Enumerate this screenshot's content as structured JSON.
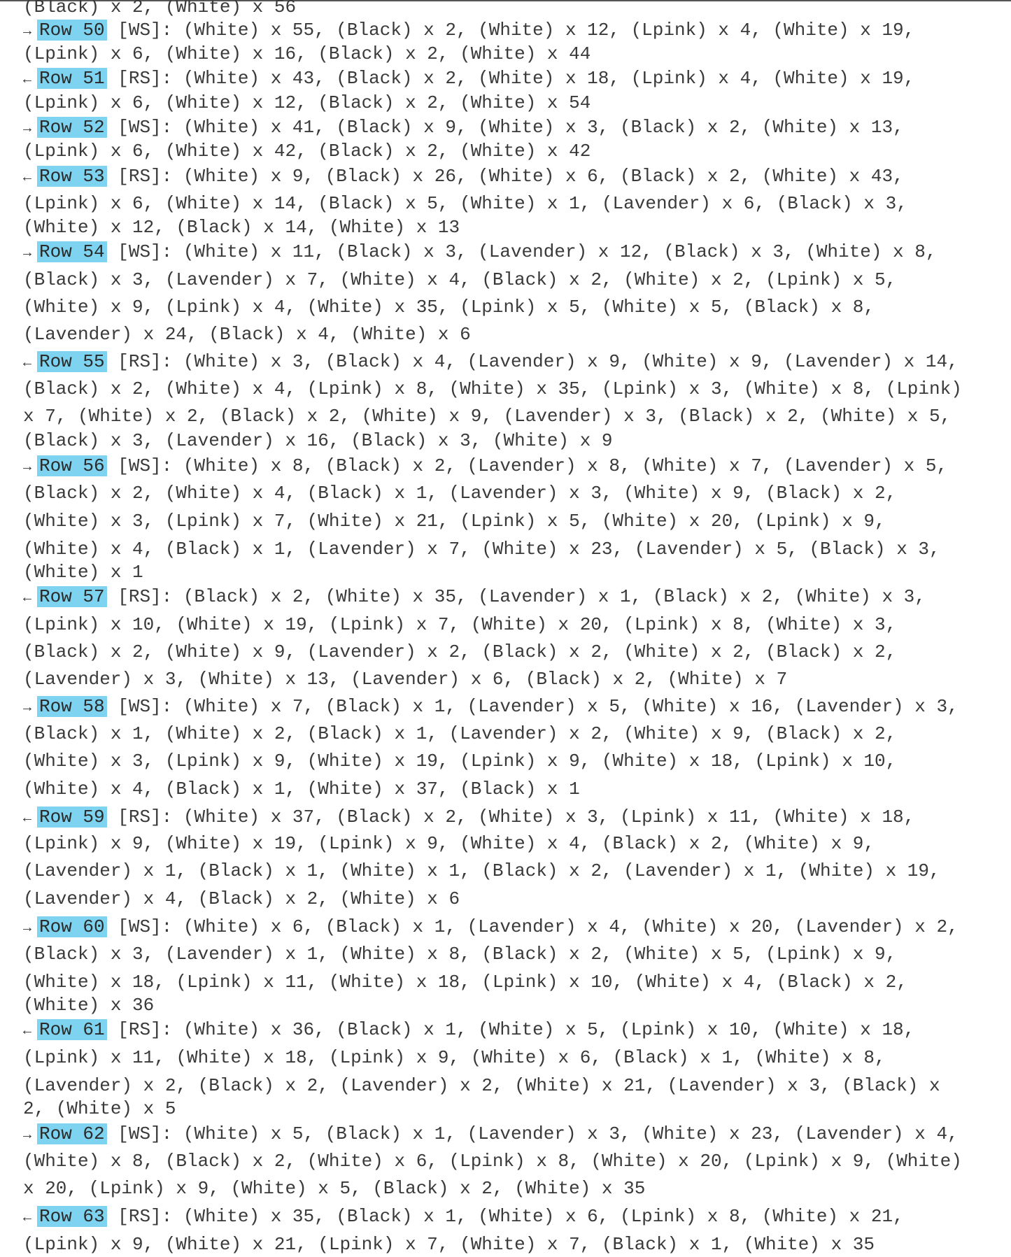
{
  "leading_fragment": "(Black) x 2, (White) x 56",
  "highlight_color": "#7ed3f0",
  "rows": [
    {
      "dir": "→",
      "label": "Row 50",
      "side": "[WS]:",
      "lines": [
        "(White) x 55, (Black) x 2, (White) x 12, (Lpink) x 4, (White) x 19,",
        "(Lpink) x 6, (White) x 16, (Black) x 2, (White) x 44"
      ]
    },
    {
      "dir": "←",
      "label": "Row 51",
      "side": "[RS]:",
      "lines": [
        "(White) x 43, (Black) x 2, (White) x 18, (Lpink) x 4, (White) x 19,",
        "(Lpink) x 6, (White) x 12, (Black) x 2, (White) x 54"
      ]
    },
    {
      "dir": "→",
      "label": "Row 52",
      "side": "[WS]:",
      "lines": [
        "(White) x 41, (Black) x 9, (White) x 3, (Black) x 2, (White) x 13,",
        "(Lpink) x 6, (White) x 42, (Black) x 2, (White) x 42"
      ]
    },
    {
      "dir": "←",
      "label": "Row 53",
      "side": "[RS]:",
      "lines": [
        "(White) x 9, (Black) x 26, (White) x 6, (Black) x 2, (White) x 43,",
        "(Lpink) x 6, (White) x 14, (Black) x 5, (White) x 1, (Lavender) x 6, (Black) x 3,",
        "(White) x 12, (Black) x 14, (White) x 13"
      ]
    },
    {
      "dir": "→",
      "label": "Row 54",
      "side": "[WS]:",
      "lines": [
        "(White) x 11, (Black) x 3, (Lavender) x 12, (Black) x 3, (White) x 8,",
        "(Black) x 3, (Lavender) x 7, (White) x 4, (Black) x 2, (White) x 2, (Lpink) x 5,",
        "(White) x 9, (Lpink) x 4, (White) x 35, (Lpink) x 5, (White) x 5, (Black) x 8,",
        "(Lavender) x 24, (Black) x 4, (White) x 6"
      ]
    },
    {
      "dir": "←",
      "label": "Row 55",
      "side": "[RS]:",
      "lines": [
        "(White) x 3, (Black) x 4, (Lavender) x 9, (White) x 9, (Lavender) x 14,",
        "(Black) x 2, (White) x 4, (Lpink) x 8, (White) x 35, (Lpink) x 3, (White) x 8, (Lpink)",
        "x 7, (White) x 2, (Black) x 2, (White) x 9, (Lavender) x 3, (Black) x 2, (White) x 5,",
        "(Black) x 3, (Lavender) x 16, (Black) x 3, (White) x 9"
      ]
    },
    {
      "dir": "→",
      "label": "Row 56",
      "side": "[WS]:",
      "lines": [
        "(White) x 8, (Black) x 2, (Lavender) x 8, (White) x 7, (Lavender) x 5,",
        "(Black) x 2, (White) x 4, (Black) x 1, (Lavender) x 3, (White) x 9, (Black) x 2,",
        "(White) x 3, (Lpink) x 7, (White) x 21, (Lpink) x 5, (White) x 20, (Lpink) x 9,",
        "(White) x 4, (Black) x 1, (Lavender) x 7, (White) x 23, (Lavender) x 5, (Black) x 3,",
        "(White) x 1"
      ]
    },
    {
      "dir": "←",
      "label": "Row 57",
      "side": "[RS]:",
      "lines": [
        "(Black) x 2, (White) x 35, (Lavender) x 1, (Black) x 2, (White) x 3,",
        "(Lpink) x 10, (White) x 19, (Lpink) x 7, (White) x 20, (Lpink) x 8, (White) x 3,",
        "(Black) x 2, (White) x 9, (Lavender) x 2, (Black) x 2, (White) x 2, (Black) x 2,",
        "(Lavender) x 3, (White) x 13, (Lavender) x 6, (Black) x 2, (White) x 7"
      ]
    },
    {
      "dir": "→",
      "label": "Row 58",
      "side": "[WS]:",
      "lines": [
        "(White) x 7, (Black) x 1, (Lavender) x 5, (White) x 16, (Lavender) x 3,",
        "(Black) x 1, (White) x 2, (Black) x 1, (Lavender) x 2, (White) x 9, (Black) x 2,",
        "(White) x 3, (Lpink) x 9, (White) x 19, (Lpink) x 9, (White) x 18, (Lpink) x 10,",
        "(White) x 4, (Black) x 1, (White) x 37, (Black) x 1"
      ]
    },
    {
      "dir": "←",
      "label": "Row 59",
      "side": "[RS]:",
      "lines": [
        "(White) x 37, (Black) x 2, (White) x 3, (Lpink) x 11, (White) x 18,",
        "(Lpink) x 9, (White) x 19, (Lpink) x 9, (White) x 4, (Black) x 2, (White) x 9,",
        "(Lavender) x 1, (Black) x 1, (White) x 1, (Black) x 2, (Lavender) x 1, (White) x 19,",
        "(Lavender) x 4, (Black) x 2, (White) x 6"
      ]
    },
    {
      "dir": "→",
      "label": "Row 60",
      "side": "[WS]:",
      "lines": [
        "(White) x 6, (Black) x 1, (Lavender) x 4, (White) x 20, (Lavender) x 2,",
        "(Black) x 3, (Lavender) x 1, (White) x 8, (Black) x 2, (White) x 5, (Lpink) x 9,",
        "(White) x 18, (Lpink) x 11, (White) x 18, (Lpink) x 10, (White) x 4, (Black) x 2,",
        "(White) x 36"
      ]
    },
    {
      "dir": "←",
      "label": "Row 61",
      "side": "[RS]:",
      "lines": [
        "(White) x 36, (Black) x 1, (White) x 5, (Lpink) x 10, (White) x 18,",
        "(Lpink) x 11, (White) x 18, (Lpink) x 9, (White) x 6, (Black) x 1, (White) x 8,",
        "(Lavender) x 2, (Black) x 2, (Lavender) x 2, (White) x 21, (Lavender) x 3, (Black) x",
        "2, (White) x 5"
      ]
    },
    {
      "dir": "→",
      "label": "Row 62",
      "side": "[WS]:",
      "lines": [
        "(White) x 5, (Black) x 1, (Lavender) x 3, (White) x 23, (Lavender) x 4,",
        "(White) x 8, (Black) x 2, (White) x 6, (Lpink) x 8, (White) x 20, (Lpink) x 9, (White)",
        "x 20, (Lpink) x 9, (White) x 5, (Black) x 2, (White) x 35"
      ]
    },
    {
      "dir": "←",
      "label": "Row 63",
      "side": "[RS]:",
      "lines": [
        "(White) x 35, (Black) x 1, (White) x 6, (Lpink) x 8, (White) x 21,",
        "(Lpink) x 9, (White) x 21, (Lpink) x 7, (White) x 7, (Black) x 1, (White) x 35"
      ]
    }
  ]
}
